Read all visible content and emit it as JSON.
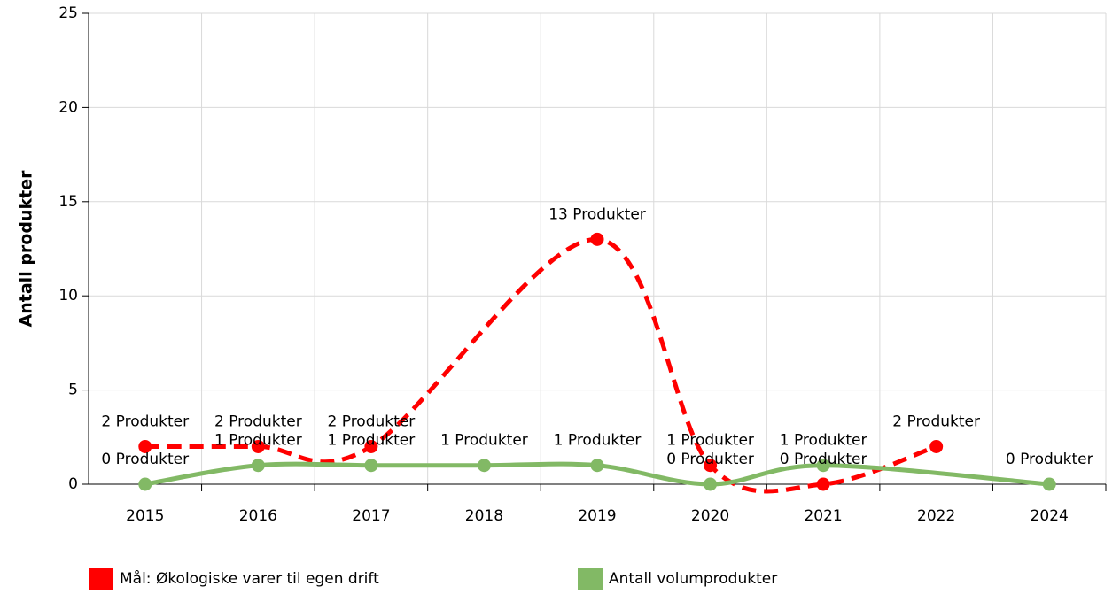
{
  "chart_data": {
    "type": "line",
    "y_label": "Antall produkter",
    "categories": [
      "2015",
      "2016",
      "2017",
      "2018",
      "2019",
      "2020",
      "2021",
      "2022",
      "2024"
    ],
    "ylim": [
      0,
      25
    ],
    "yticks": [
      0,
      5,
      10,
      15,
      20,
      25
    ],
    "grid": true,
    "smooth": true,
    "series": [
      {
        "name": "Mål: Økologiske varer til egen drift",
        "color": "#ff0000",
        "dashed": true,
        "x": [
          "2015",
          "2016",
          "2017",
          "2019",
          "2020",
          "2021",
          "2022"
        ],
        "values": [
          2,
          2,
          2,
          13,
          1,
          0,
          2
        ],
        "value_labels": [
          "2 Produkter",
          "2 Produkter",
          "2 Produkter",
          "13 Produkter",
          "1 Produkter",
          "0 Produkter",
          "2 Produkter"
        ]
      },
      {
        "name": "Antall volumprodukter",
        "color": "#82b965",
        "dashed": false,
        "x": [
          "2015",
          "2016",
          "2017",
          "2018",
          "2019",
          "2020",
          "2021",
          "2024"
        ],
        "values": [
          0,
          1,
          1,
          1,
          1,
          0,
          1,
          0
        ],
        "value_labels": [
          "0 Produkter",
          "1 Produkter",
          "1 Produkter",
          "1 Produkter",
          "1 Produkter",
          "0 Produkter",
          "1 Produkter",
          "0 Produkter"
        ]
      }
    ]
  }
}
